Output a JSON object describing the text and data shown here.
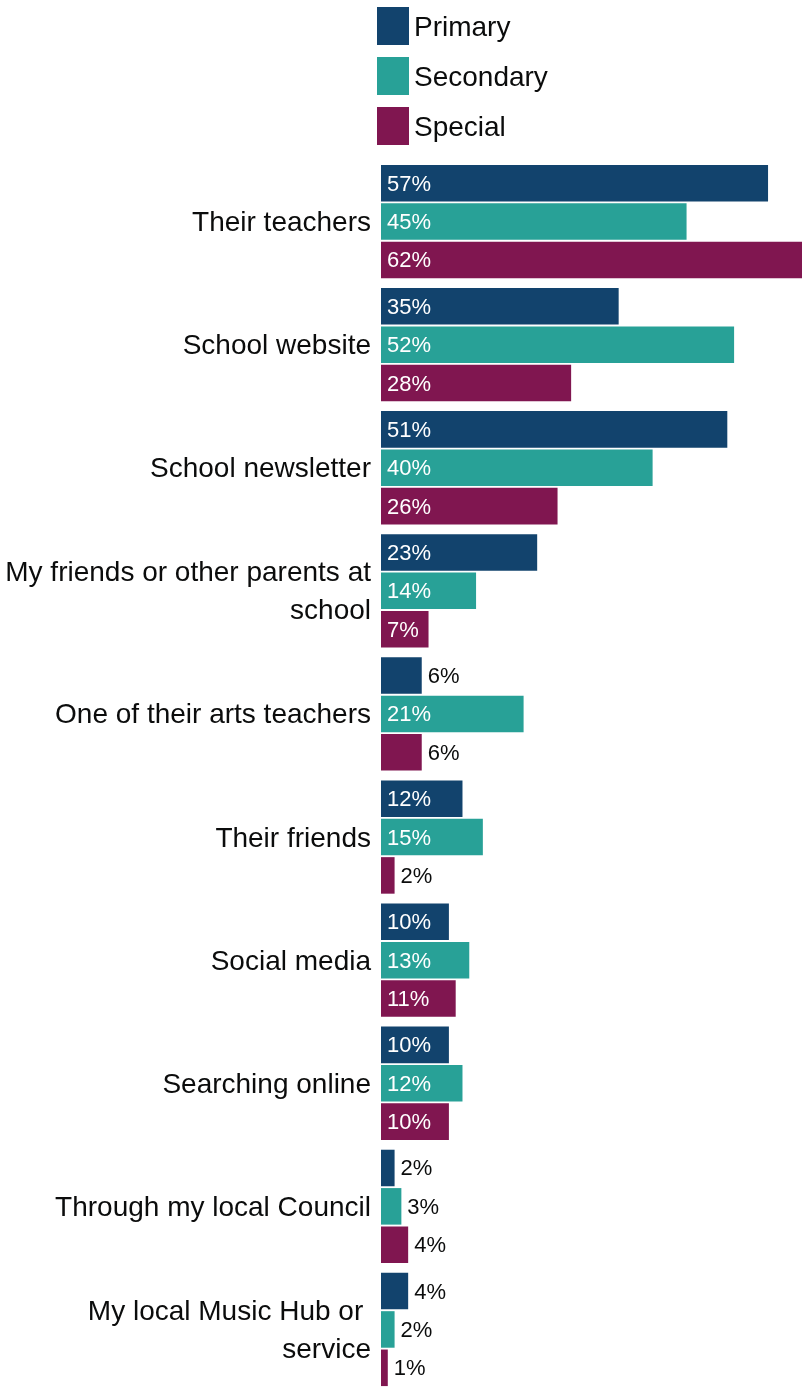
{
  "chart_data": {
    "type": "bar",
    "orientation": "horizontal",
    "tick_labels": "y",
    "legend": "top",
    "categories": [
      "Their teachers",
      "School website",
      "School newsletter",
      "My friends or other parents at school",
      "One of their arts teachers",
      "Their friends",
      "Social media",
      "Searching online",
      "Through my local Council",
      "My local Music Hub or service"
    ],
    "series": [
      {
        "name": "Primary",
        "color": "#12436d",
        "values": [
          57,
          35,
          51,
          23,
          6,
          12,
          10,
          10,
          2,
          4
        ],
        "value_labels": [
          "57%",
          "35%",
          "51%",
          "23%",
          "6%",
          "12%",
          "10%",
          "10%",
          "2%",
          "4%"
        ]
      },
      {
        "name": "Secondary",
        "color": "#28a197",
        "values": [
          45,
          52,
          40,
          14,
          21,
          15,
          13,
          12,
          3,
          2
        ],
        "value_labels": [
          "45%",
          "52%",
          "40%",
          "14%",
          "21%",
          "15%",
          "13%",
          "12%",
          "3%",
          "2%"
        ]
      },
      {
        "name": "Special",
        "color": "#801650",
        "values": [
          62,
          28,
          26,
          7,
          6,
          2,
          11,
          10,
          4,
          1
        ],
        "value_labels": [
          "62%",
          "28%",
          "26%",
          "7%",
          "6%",
          "2%",
          "11%",
          "10%",
          "4%",
          "1%"
        ]
      }
    ]
  }
}
